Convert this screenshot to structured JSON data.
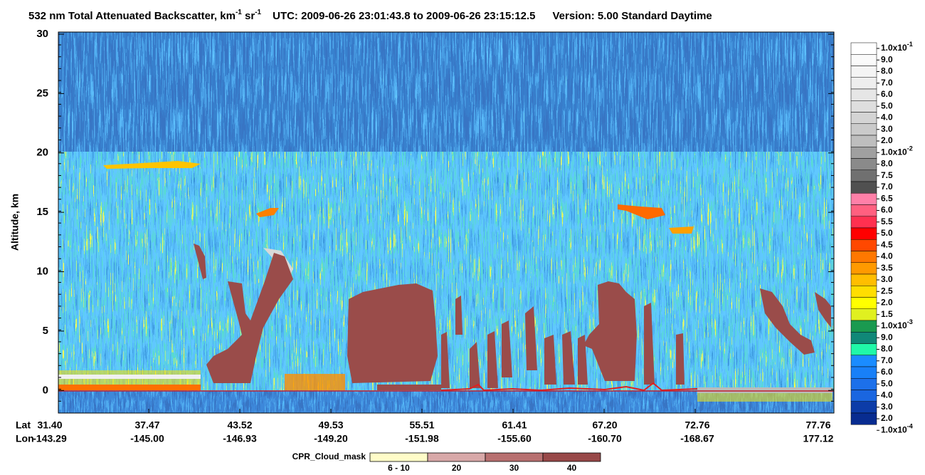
{
  "chart_data": {
    "type": "curtain",
    "title": {
      "main": "532 nm Total Attenuated Backscatter, km",
      "sup1": "-1",
      "mid": " sr",
      "sup2": "-1",
      "utc": "UTC:  2009-06-26 23:01:43.8  to  2009-06-26 23:15:12.5",
      "version": "Version: 5.00  Standard  Daytime"
    },
    "ylabel": "Altitude, km",
    "ylim": [
      -1.9,
      30
    ],
    "yticks": [
      0,
      5,
      10,
      15,
      20,
      25,
      30
    ],
    "x_rows": [
      {
        "name": "Lat",
        "labels": [
          "31.40",
          "37.47",
          "43.52",
          "49.53",
          "55.51",
          "61.41",
          "67.20",
          "72.76",
          "77.76"
        ]
      },
      {
        "name": "Lon",
        "labels": [
          "-143.29",
          "-145.00",
          "-146.93",
          "-149.20",
          "-151.98",
          "-155.60",
          "-160.70",
          "-168.67",
          "177.12"
        ]
      }
    ],
    "colorbar": {
      "labels": [
        {
          "text": "1.0x10",
          "exp": "-1"
        },
        "9.0",
        "8.0",
        "7.0",
        "6.0",
        "5.0",
        "4.0",
        "3.0",
        "2.0",
        {
          "text": "1.0x10",
          "exp": "-2"
        },
        "8.0",
        "7.5",
        "7.0",
        "6.5",
        "6.0",
        "5.5",
        "5.0",
        "4.5",
        "4.0",
        "3.5",
        "3.0",
        "2.5",
        "2.0",
        "1.5",
        {
          "text": "1.0x10",
          "exp": "-3"
        },
        "9.0",
        "8.0",
        "7.0",
        "6.0",
        "5.0",
        "4.0",
        "3.0",
        "2.0",
        {
          "text": "1.0x10",
          "exp": "-4"
        }
      ],
      "colors": [
        "#ffffff",
        "#fafafa",
        "#f4f4f4",
        "#eeeeee",
        "#e6e6e6",
        "#dedede",
        "#d4d4d4",
        "#cacaca",
        "#bebebe",
        "#a0a0a0",
        "#8a8a8a",
        "#707070",
        "#505050",
        "#ff80a8",
        "#ff6080",
        "#ff3050",
        "#ff0000",
        "#ff4800",
        "#ff7800",
        "#ff9a00",
        "#ffbe00",
        "#ffde00",
        "#ffff00",
        "#e0f020",
        "#1a9a50",
        "#108878",
        "#20f8a8",
        "#1a8cff",
        "#1880f8",
        "#1c70ea",
        "#1a66e0",
        "#0c3ca8",
        "#082c90"
      ]
    },
    "cpr_legend": {
      "title": "CPR_Cloud_mask",
      "labels": [
        "6 - 10",
        "20",
        "30",
        "40"
      ],
      "colors": [
        "#fffcc8",
        "#d8a8a8",
        "#b87070",
        "#984848"
      ]
    }
  }
}
